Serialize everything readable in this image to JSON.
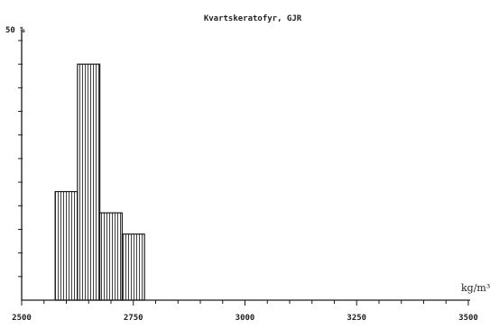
{
  "chart_data": {
    "type": "bar",
    "title": "Kvartskeratofyr, GJR",
    "y_top_label": "50 %",
    "x_unit_label": "kg/m³",
    "bar_edges": [
      2575,
      2625,
      2675,
      2725,
      2775
    ],
    "values": [
      23,
      50,
      18.5,
      14
    ],
    "xlim": [
      2500,
      3500
    ],
    "ylim": [
      0,
      55
    ],
    "x_ticks": [
      2500,
      2750,
      3000,
      3250,
      3500
    ],
    "x_tick_labels": [
      "2500",
      "2750",
      "3000",
      "3250",
      "3500"
    ],
    "x_minor_step": 50,
    "y_minor_step": 5,
    "grid": false,
    "colors": {
      "axis": "#1a1a1a",
      "bar_stroke": "#1a1a1a",
      "hatch": "#2a2a2a",
      "background": "#ffffff"
    }
  }
}
